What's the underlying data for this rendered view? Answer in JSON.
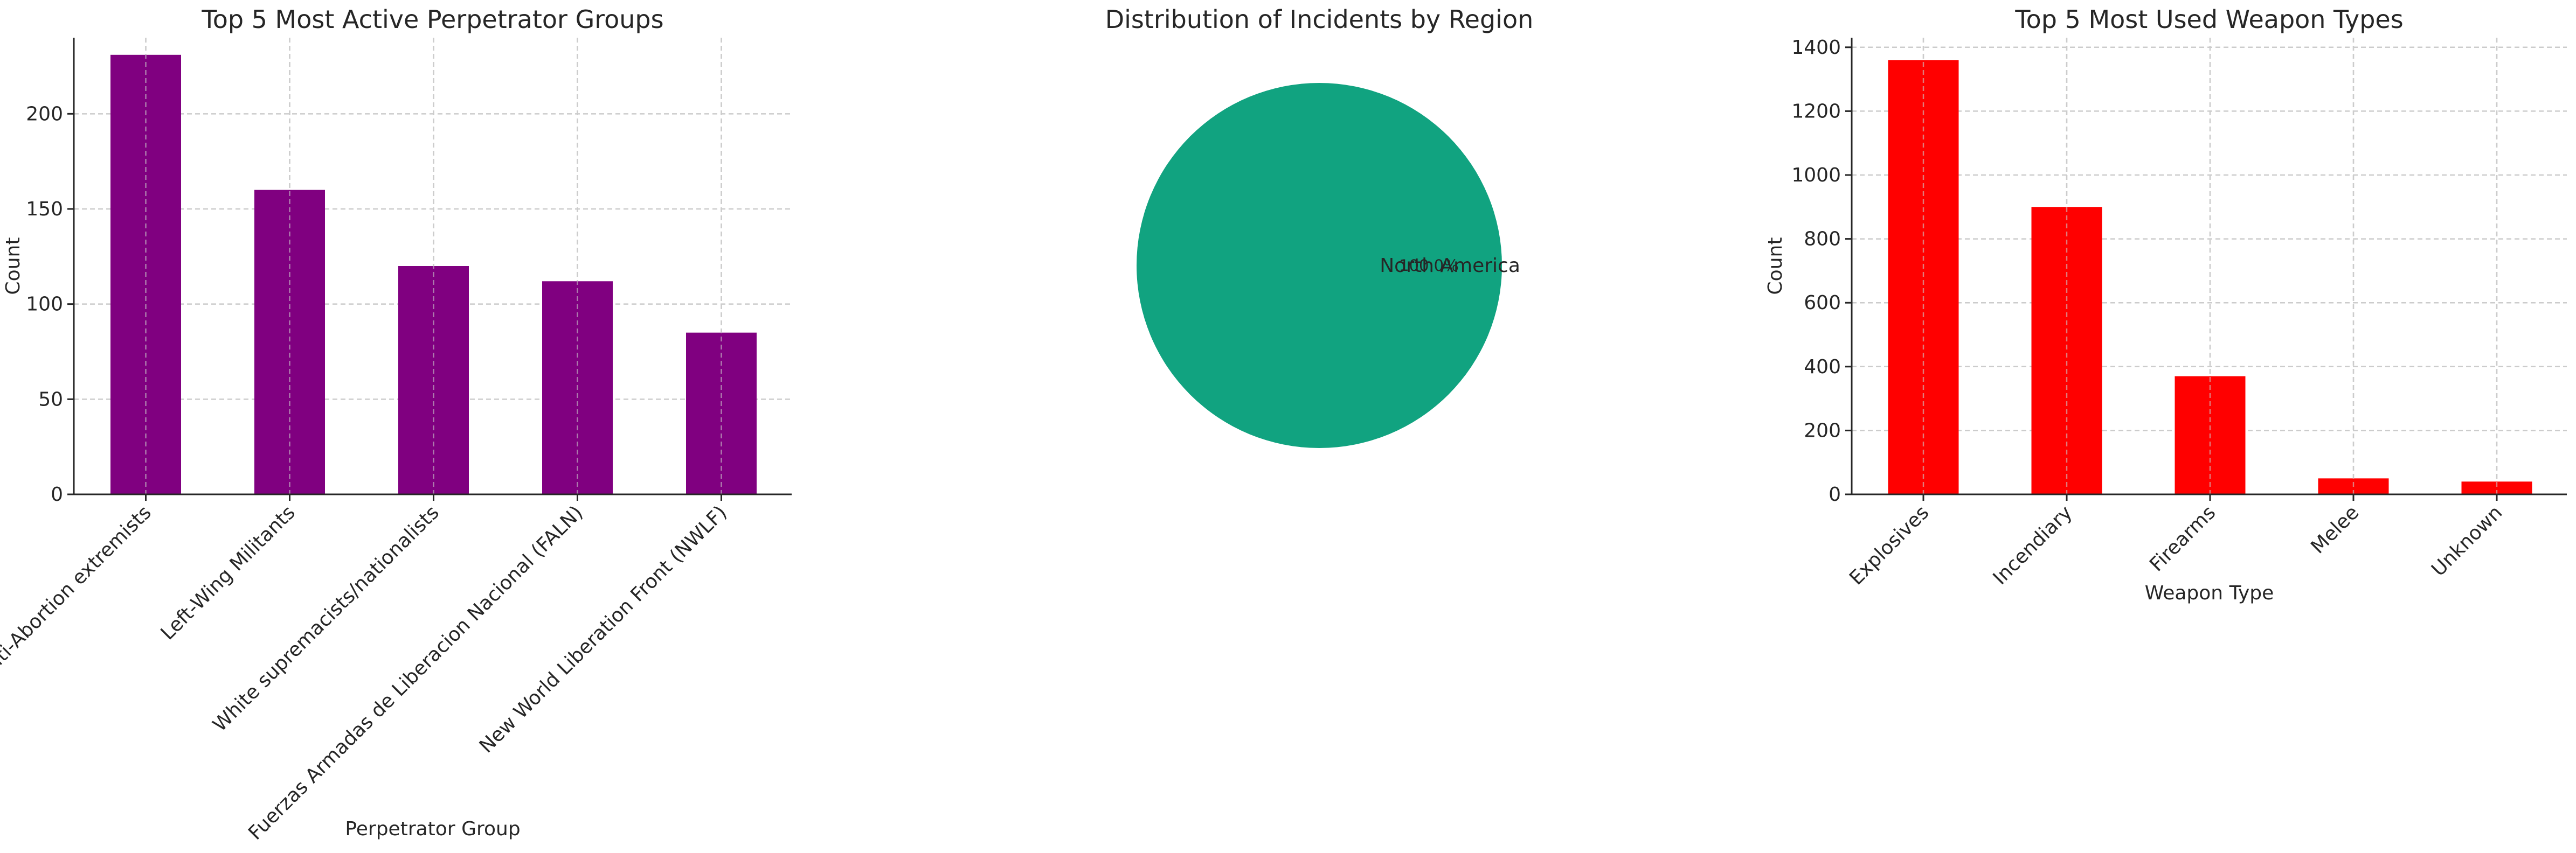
{
  "chart_data": [
    {
      "type": "bar",
      "title": "Top 5 Most Active Perpetrator Groups",
      "xlabel": "Perpetrator Group",
      "ylabel": "Count",
      "categories": [
        "Anti-Abortion extremists",
        "Left-Wing Militants",
        "White supremacists/nationalists",
        "Fuerzas Armadas de Liberacion Nacional (FALN)",
        "New World Liberation Front (NWLF)"
      ],
      "values": [
        231,
        160,
        120,
        112,
        85
      ],
      "ylim": [
        0,
        240
      ],
      "yticks": [
        0,
        50,
        100,
        150,
        200
      ],
      "grid": true,
      "color": "#800080"
    },
    {
      "type": "pie",
      "title": "Distribution of Incidents by Region",
      "labels": [
        "North America"
      ],
      "values": [
        100.0
      ],
      "autopct": [
        "100.0%"
      ],
      "colors": [
        "#11a380"
      ]
    },
    {
      "type": "bar",
      "title": "Top 5 Most Used Weapon Types",
      "xlabel": "Weapon Type",
      "ylabel": "Count",
      "categories": [
        "Explosives",
        "Incendiary",
        "Firearms",
        "Melee",
        "Unknown"
      ],
      "values": [
        1360,
        900,
        370,
        50,
        40
      ],
      "ylim": [
        0,
        1430
      ],
      "yticks": [
        0,
        200,
        400,
        600,
        800,
        1000,
        1200,
        1400
      ],
      "grid": true,
      "color": "#ff0000"
    }
  ]
}
